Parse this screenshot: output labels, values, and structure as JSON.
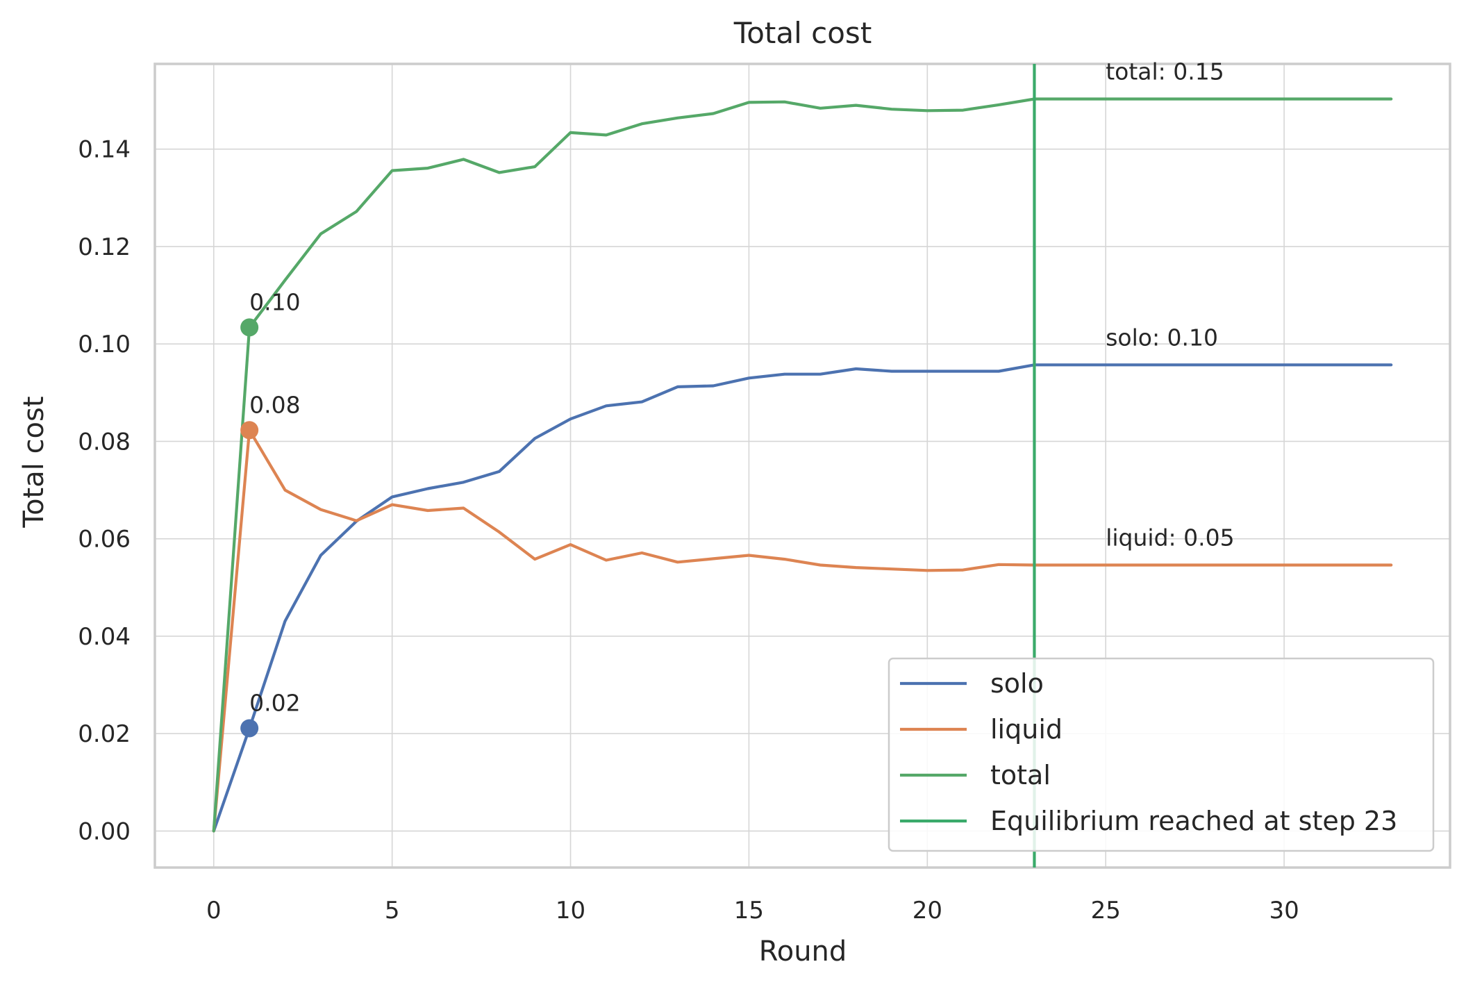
{
  "chart_data": {
    "type": "line",
    "title": "Total cost",
    "xlabel": "Round",
    "ylabel": "Total cost",
    "xlim": [
      -1.65,
      34.65
    ],
    "ylim": [
      -0.0075,
      0.1575
    ],
    "xticks": [
      0,
      5,
      10,
      15,
      20,
      25,
      30
    ],
    "xtick_labels": [
      "0",
      "5",
      "10",
      "15",
      "20",
      "25",
      "30"
    ],
    "yticks": [
      0.0,
      0.02,
      0.04,
      0.06,
      0.08,
      0.1,
      0.12,
      0.14
    ],
    "ytick_labels": [
      "0.00",
      "0.02",
      "0.04",
      "0.06",
      "0.08",
      "0.10",
      "0.12",
      "0.14"
    ],
    "grid": true,
    "x": [
      0,
      1,
      2,
      3,
      4,
      5,
      6,
      7,
      8,
      9,
      10,
      11,
      12,
      13,
      14,
      15,
      16,
      17,
      18,
      19,
      20,
      21,
      22,
      23,
      24,
      25,
      26,
      27,
      28,
      29,
      30,
      31,
      32,
      33
    ],
    "series": [
      {
        "name": "solo",
        "color": "#4c72b0",
        "values": [
          0,
          0.0211,
          0.0431,
          0.0566,
          0.0636,
          0.0686,
          0.0703,
          0.0716,
          0.0738,
          0.0806,
          0.0846,
          0.0873,
          0.0881,
          0.0912,
          0.0914,
          0.093,
          0.0938,
          0.0938,
          0.0949,
          0.0944,
          0.0944,
          0.0944,
          0.0944,
          0.0957,
          0.0957,
          0.0957,
          0.0957,
          0.0957,
          0.0957,
          0.0957,
          0.0957,
          0.0957,
          0.0957,
          0.0957
        ],
        "marker": {
          "x": 1,
          "y": 0.0211,
          "label": "0.02"
        },
        "end_label": "solo: 0.10"
      },
      {
        "name": "liquid",
        "color": "#dd8452",
        "values": [
          0,
          0.0823,
          0.07,
          0.066,
          0.0637,
          0.067,
          0.0658,
          0.0663,
          0.0614,
          0.0558,
          0.0588,
          0.0556,
          0.0571,
          0.0552,
          0.0559,
          0.0566,
          0.0558,
          0.0546,
          0.0541,
          0.0538,
          0.0535,
          0.0536,
          0.0547,
          0.0546,
          0.0546,
          0.0546,
          0.0546,
          0.0546,
          0.0546,
          0.0546,
          0.0546,
          0.0546,
          0.0546,
          0.0546
        ],
        "marker": {
          "x": 1,
          "y": 0.0823,
          "label": "0.08"
        },
        "end_label": "liquid: 0.05"
      },
      {
        "name": "total",
        "color": "#55a868",
        "values": [
          0,
          0.1034,
          0.1131,
          0.1226,
          0.1272,
          0.1356,
          0.1361,
          0.1379,
          0.1352,
          0.1364,
          0.1434,
          0.1429,
          0.1452,
          0.1464,
          0.1473,
          0.1496,
          0.1497,
          0.1484,
          0.149,
          0.1482,
          0.1479,
          0.148,
          0.1491,
          0.1503,
          0.1503,
          0.1503,
          0.1503,
          0.1503,
          0.1503,
          0.1503,
          0.1503,
          0.1503,
          0.1503,
          0.1503
        ],
        "marker": {
          "x": 1,
          "y": 0.1034,
          "label": "0.10"
        },
        "end_label": "total: 0.15"
      }
    ],
    "end_label_x": 25,
    "vline": {
      "x": 23,
      "color": "#3aaa6a",
      "label": "Equilibrium reached at step 23"
    },
    "legend": {
      "position": "lower right",
      "entries": [
        {
          "label": "solo",
          "color": "#4c72b0"
        },
        {
          "label": "liquid",
          "color": "#dd8452"
        },
        {
          "label": "total",
          "color": "#55a868"
        },
        {
          "label": "Equilibrium reached at step 23",
          "color": "#3aaa6a"
        }
      ]
    }
  }
}
